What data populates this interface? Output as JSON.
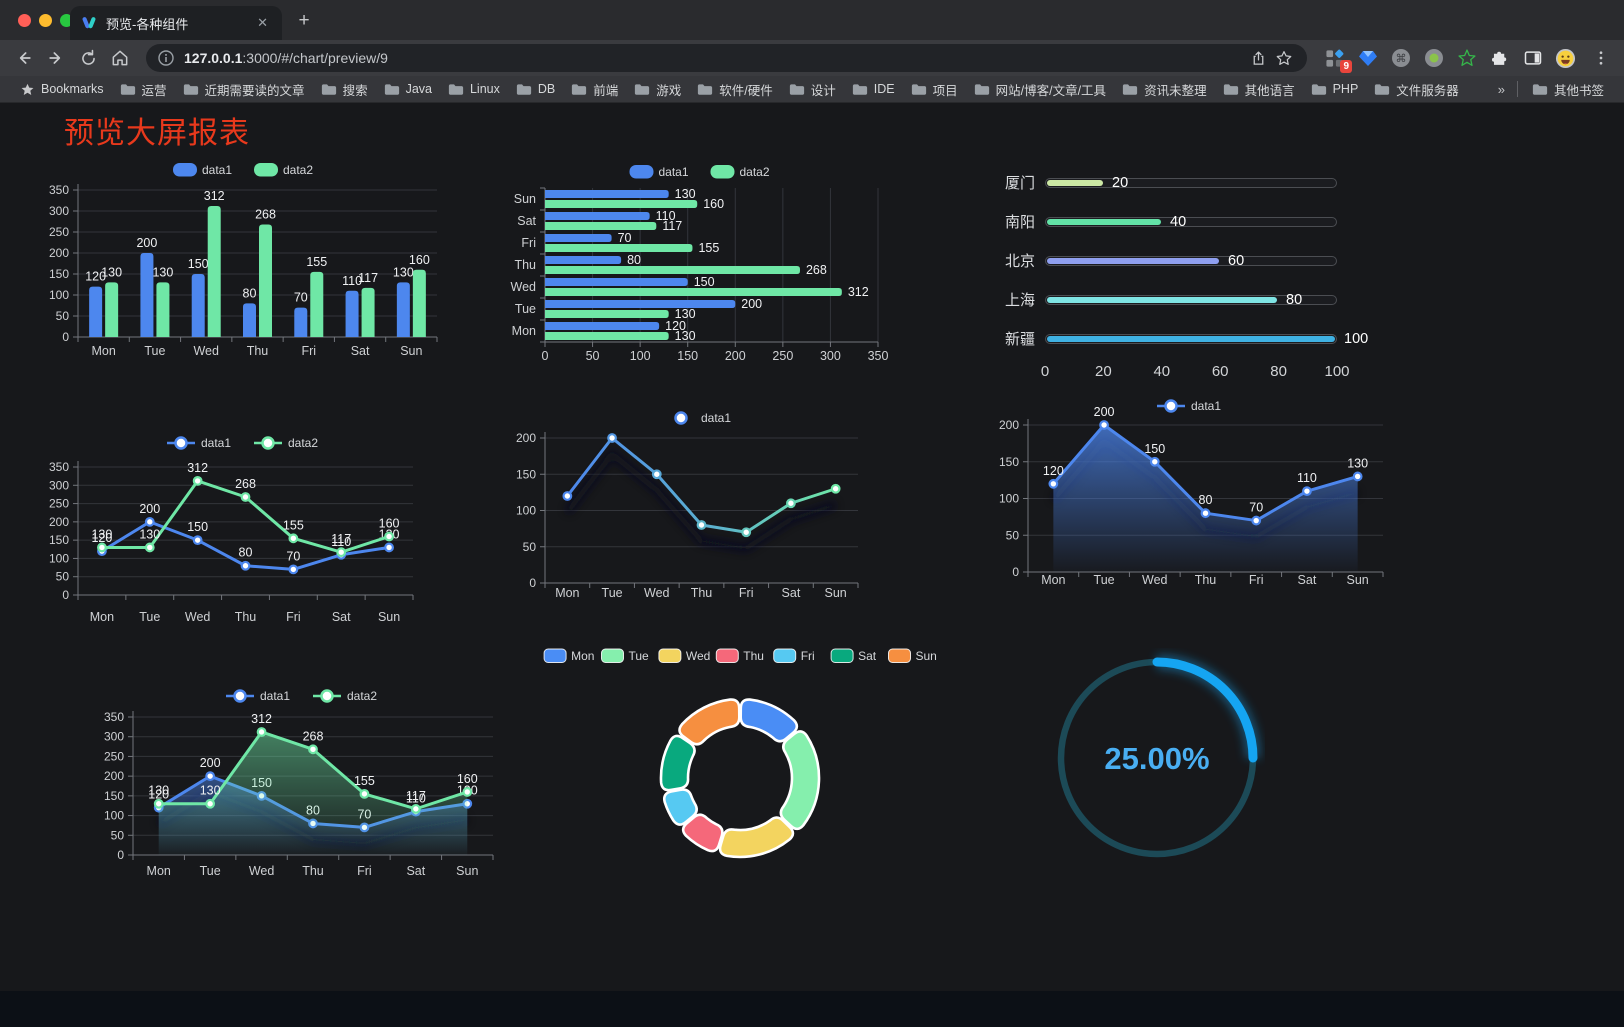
{
  "browser": {
    "tab": {
      "title": "预览-各种组件",
      "close_icon": "✕",
      "new_tab_icon": "+"
    },
    "url": {
      "host": "127.0.0.1",
      "rest": ":3000/#/chart/preview/9"
    },
    "toolbar": {
      "extension_badge": "9"
    },
    "bookmarks": {
      "label": "Bookmarks",
      "items": [
        "运营",
        "近期需要读的文章",
        "搜索",
        "Java",
        "Linux",
        "DB",
        "前端",
        "游戏",
        "软件/硬件",
        "设计",
        "IDE",
        "项目",
        "网站/博客/文章/工具",
        "资讯未整理",
        "其他语言",
        "PHP",
        "文件服务器"
      ],
      "overflow": "»",
      "other": "其他书签"
    }
  },
  "page": {
    "title": "预览大屏报表",
    "title_color": "#e8391c"
  },
  "chart_data": [
    {
      "id": "grouped-bar",
      "type": "bar",
      "legend_position": "top",
      "grid": true,
      "categories": [
        "Mon",
        "Tue",
        "Wed",
        "Thu",
        "Fri",
        "Sat",
        "Sun"
      ],
      "series": [
        {
          "name": "data1",
          "color": "#4d87ee",
          "values": [
            120,
            200,
            150,
            80,
            70,
            110,
            130
          ]
        },
        {
          "name": "data2",
          "color": "#6fe7a6",
          "values": [
            130,
            130,
            312,
            268,
            155,
            117,
            160
          ]
        }
      ],
      "ylim": [
        0,
        350
      ],
      "yticks": [
        0,
        50,
        100,
        150,
        200,
        250,
        300,
        350
      ]
    },
    {
      "id": "horizontal-bar",
      "type": "bar",
      "orientation": "horizontal",
      "legend_position": "top",
      "grid": true,
      "categories": [
        "Mon",
        "Tue",
        "Wed",
        "Thu",
        "Fri",
        "Sat",
        "Sun"
      ],
      "series": [
        {
          "name": "data1",
          "color": "#4d87ee",
          "values": [
            120,
            200,
            150,
            80,
            70,
            110,
            130
          ]
        },
        {
          "name": "data2",
          "color": "#6fe7a6",
          "values": [
            130,
            130,
            312,
            268,
            155,
            117,
            160
          ]
        }
      ],
      "xlim": [
        0,
        350
      ],
      "xticks": [
        0,
        50,
        100,
        150,
        200,
        250,
        300,
        350
      ]
    },
    {
      "id": "progress-bars",
      "type": "bar",
      "orientation": "horizontal",
      "items": [
        {
          "label": "厦门",
          "value": 20,
          "color": "#cde9a5"
        },
        {
          "label": "南阳",
          "value": 40,
          "color": "#63e2a7"
        },
        {
          "label": "北京",
          "value": 60,
          "color": "#8f9ff0"
        },
        {
          "label": "上海",
          "value": 80,
          "color": "#7fe4e4"
        },
        {
          "label": "新疆",
          "value": 100,
          "color": "#3fb1e3"
        }
      ],
      "xlim": [
        0,
        100
      ],
      "xticks": [
        0,
        20,
        40,
        60,
        80,
        100
      ]
    },
    {
      "id": "line-two-series",
      "type": "line",
      "legend_position": "top",
      "grid": true,
      "categories": [
        "Mon",
        "Tue",
        "Wed",
        "Thu",
        "Fri",
        "Sat",
        "Sun"
      ],
      "series": [
        {
          "name": "data1",
          "color": "#4d87ee",
          "values": [
            120,
            200,
            150,
            80,
            70,
            110,
            130
          ]
        },
        {
          "name": "data2",
          "color": "#6fe7a6",
          "values": [
            130,
            130,
            312,
            268,
            155,
            117,
            160
          ]
        }
      ],
      "ylim": [
        0,
        350
      ],
      "yticks": [
        0,
        50,
        100,
        150,
        200,
        250,
        300,
        350
      ]
    },
    {
      "id": "gradient-line",
      "type": "line",
      "legend_position": "top",
      "grid": true,
      "categories": [
        "Mon",
        "Tue",
        "Wed",
        "Thu",
        "Fri",
        "Sat",
        "Sun"
      ],
      "series": [
        {
          "name": "data1",
          "color": "#4d87ee",
          "color_gradient": [
            "#4d87ee",
            "#6fe7a6"
          ],
          "values": [
            120,
            200,
            150,
            80,
            70,
            110,
            130
          ]
        }
      ],
      "ylim": [
        0,
        200
      ],
      "yticks": [
        0,
        50,
        100,
        150,
        200
      ]
    },
    {
      "id": "area-line",
      "type": "area",
      "legend_position": "top",
      "grid": true,
      "categories": [
        "Mon",
        "Tue",
        "Wed",
        "Thu",
        "Fri",
        "Sat",
        "Sun"
      ],
      "series": [
        {
          "name": "data1",
          "color": "#4d87ee",
          "values": [
            120,
            200,
            150,
            80,
            70,
            110,
            130
          ]
        }
      ],
      "ylim": [
        0,
        200
      ],
      "yticks": [
        0,
        50,
        100,
        150,
        200
      ]
    },
    {
      "id": "area-two-series",
      "type": "area",
      "legend_position": "top",
      "grid": true,
      "categories": [
        "Mon",
        "Tue",
        "Wed",
        "Thu",
        "Fri",
        "Sat",
        "Sun"
      ],
      "series": [
        {
          "name": "data1",
          "color": "#4d87ee",
          "values": [
            120,
            200,
            150,
            80,
            70,
            110,
            130
          ]
        },
        {
          "name": "data2",
          "color": "#6fe7a6",
          "values": [
            130,
            130,
            312,
            268,
            155,
            117,
            160
          ]
        }
      ],
      "ylim": [
        0,
        350
      ],
      "yticks": [
        0,
        50,
        100,
        150,
        200,
        250,
        300,
        350
      ]
    },
    {
      "id": "donut",
      "type": "pie",
      "legend_position": "top",
      "labels": [
        "Mon",
        "Tue",
        "Wed",
        "Thu",
        "Fri",
        "Sat",
        "Sun"
      ],
      "values": [
        120,
        200,
        150,
        80,
        70,
        110,
        130
      ],
      "colors": [
        "#4a8df5",
        "#85efad",
        "#f3d45f",
        "#f5687a",
        "#56c9f2",
        "#09a97e",
        "#f68f40"
      ],
      "border_color": "#ffffff"
    },
    {
      "id": "progress-ring",
      "type": "gauge",
      "value": 25,
      "display": "25.00%",
      "color": "#15a5f2",
      "track_color": "#1c4a57",
      "text_color": "#49aef2"
    }
  ]
}
